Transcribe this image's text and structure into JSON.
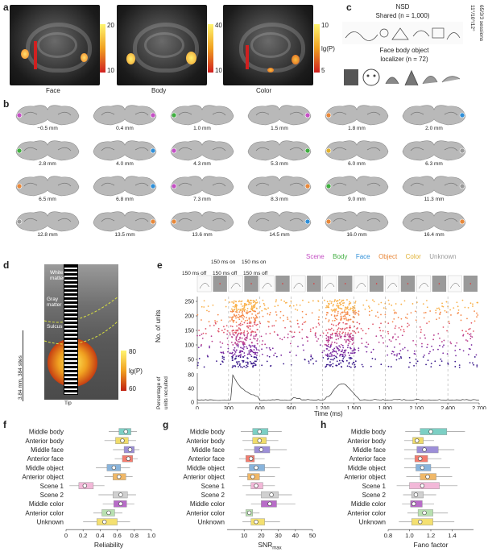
{
  "panels": {
    "a": "a",
    "b": "b",
    "c": "c",
    "d": "d",
    "e": "e",
    "f": "f",
    "g": "g",
    "h": "h"
  },
  "panel_a": {
    "maps": [
      {
        "label": "Face",
        "cmax": "20",
        "cmin": "10"
      },
      {
        "label": "Body",
        "cmax": "40",
        "cmin": "10"
      },
      {
        "label": "Color",
        "cmax": "10",
        "cmin": "5"
      }
    ],
    "unit_label": "lg(P)"
  },
  "panel_c": {
    "nsd_title": "NSD",
    "nsd_sub": "Shared (n = 1,000)",
    "loc_title": "Face body object",
    "loc_sub": "localizer (n = 72)",
    "side_text_1": "11°/10°/12°",
    "side_text_2": "65/3/3 sessions"
  },
  "panel_b": {
    "slices": [
      "−0.5 mm",
      "0.4 mm",
      "1.0 mm",
      "1.5 mm",
      "1.8 mm",
      "2.0 mm",
      "2.8 mm",
      "4.0 mm",
      "4.3 mm",
      "5.3 mm",
      "6.0 mm",
      "6.3 mm",
      "6.5 mm",
      "6.8 mm",
      "7.3 mm",
      "8.3 mm",
      "9.0 mm",
      "11.3 mm",
      "12.8 mm",
      "13.5 mm",
      "13.6 mm",
      "14.5 mm",
      "16.0 mm",
      "16.4 mm"
    ],
    "legend": [
      {
        "name": "Scene",
        "color": "#c44fc4"
      },
      {
        "name": "Body",
        "color": "#3fae3f"
      },
      {
        "name": "Face",
        "color": "#2f8fd8"
      },
      {
        "name": "Object",
        "color": "#e8883a"
      },
      {
        "name": "Color",
        "color": "#e0b030"
      },
      {
        "name": "Unknown",
        "color": "#9a9a9a"
      }
    ]
  },
  "panel_d": {
    "white_matter": "White matter",
    "gray_matter": "Gray matter",
    "sulcus": "Sulcus",
    "length_label": "3.84 mm, 384 sites",
    "tip": "Tip",
    "cmax": "80",
    "cmin": "60",
    "unit": "lg(P)"
  },
  "panel_e": {
    "on_label_1": "150 ms on",
    "on_label_2": "150 ms on",
    "off_label_1": "150 ms off",
    "off_label_2": "150 ms off",
    "off_label_3": "150 ms off",
    "ylabel_top": "No. of units",
    "ylabel_bottom_1": "Percentage of",
    "ylabel_bottom_2": "units recruited",
    "xlabel": "Time (ms)",
    "yticks_top": [
      "250",
      "200",
      "150",
      "100",
      "50"
    ],
    "yticks_bottom": [
      "80",
      "40",
      "0"
    ],
    "xticks": [
      "0",
      "300",
      "600",
      "900",
      "1,200",
      "1,500",
      "1,800",
      "2,100",
      "2,400",
      "2,700"
    ]
  },
  "chart_data": [
    {
      "type": "box",
      "panel": "f",
      "xlabel": "Reliability",
      "xlim": [
        0,
        1.0
      ],
      "xticks": [
        "0",
        "0.2",
        "0.4",
        "0.6",
        "0.8",
        "1.0"
      ],
      "categories": [
        "Middle body",
        "Anterior body",
        "Middle face",
        "Anterior face",
        "Middle object",
        "Anterior object",
        "Scene 1",
        "Scene 2",
        "Middle color",
        "Anterior color",
        "Unknown"
      ],
      "medians": [
        0.7,
        0.66,
        0.75,
        0.73,
        0.56,
        0.62,
        0.22,
        0.64,
        0.64,
        0.5,
        0.45
      ],
      "q1": [
        0.62,
        0.58,
        0.68,
        0.66,
        0.48,
        0.55,
        0.15,
        0.55,
        0.56,
        0.42,
        0.36
      ],
      "q3": [
        0.76,
        0.73,
        0.8,
        0.78,
        0.64,
        0.7,
        0.32,
        0.72,
        0.71,
        0.57,
        0.6
      ],
      "whisker_low": [
        0.5,
        0.45,
        0.55,
        0.57,
        0.35,
        0.45,
        0.04,
        0.38,
        0.43,
        0.32,
        0.2
      ],
      "whisker_high": [
        0.83,
        0.82,
        0.86,
        0.84,
        0.75,
        0.78,
        0.45,
        0.82,
        0.8,
        0.66,
        0.75
      ],
      "colors": [
        "#7ccfc4",
        "#f0dc6a",
        "#9d8fd8",
        "#f47c6e",
        "#88b4dc",
        "#f0b868",
        "#f2b8d8",
        "#d0d0d0",
        "#b86cc8",
        "#b8e0b0",
        "#f4e070"
      ]
    },
    {
      "type": "box",
      "panel": "g",
      "xlabel": "SNR",
      "xlabel_sub": "max",
      "xlim": [
        0,
        50
      ],
      "xticks": [
        "10",
        "20",
        "30",
        "40",
        "50"
      ],
      "categories": [
        "Middle body",
        "Anterior body",
        "Middle face",
        "Anterior face",
        "Middle object",
        "Anterior object",
        "Scene 1",
        "Scene 2",
        "Middle color",
        "Anterior color",
        "Unknown"
      ],
      "medians": [
        19,
        19,
        20,
        14,
        17,
        15,
        17,
        26,
        25,
        13,
        17
      ],
      "q1": [
        15,
        15,
        16,
        11,
        13,
        12,
        14,
        20,
        20,
        11,
        14
      ],
      "q3": [
        24,
        23,
        25,
        16,
        22,
        19,
        21,
        30,
        29,
        15,
        22
      ],
      "whisker_low": [
        8,
        9,
        10,
        7,
        6,
        7,
        9,
        11,
        14,
        8,
        9
      ],
      "whisker_high": [
        32,
        30,
        35,
        22,
        31,
        28,
        28,
        38,
        40,
        19,
        31
      ],
      "colors": [
        "#7ccfc4",
        "#f0dc6a",
        "#9d8fd8",
        "#f47c6e",
        "#88b4dc",
        "#f0b868",
        "#f2b8d8",
        "#d0d0d0",
        "#b86cc8",
        "#b8e0b0",
        "#f4e070"
      ]
    },
    {
      "type": "box",
      "panel": "h",
      "xlabel": "Fano factor",
      "xlim": [
        0.8,
        1.6
      ],
      "xticks": [
        "0.8",
        "1.0",
        "1.2",
        "1.4"
      ],
      "categories": [
        "Middle body",
        "Anterior body",
        "Middle face",
        "Anterior face",
        "Middle object",
        "Anterior object",
        "Scene 1",
        "Scene 2",
        "Middle color",
        "Anterior color",
        "Unknown"
      ],
      "medians": [
        1.2,
        1.07,
        1.14,
        1.1,
        1.12,
        1.17,
        1.12,
        1.06,
        1.04,
        1.14,
        1.1
      ],
      "q1": [
        1.1,
        1.03,
        1.07,
        1.05,
        1.06,
        1.1,
        1.0,
        1.02,
        1.01,
        1.08,
        1.02
      ],
      "q3": [
        1.35,
        1.13,
        1.27,
        1.17,
        1.2,
        1.25,
        1.28,
        1.13,
        1.12,
        1.22,
        1.22
      ],
      "whisker_low": [
        0.96,
        0.95,
        0.95,
        0.95,
        0.95,
        0.97,
        0.88,
        0.94,
        0.93,
        0.98,
        0.9
      ],
      "whisker_high": [
        1.52,
        1.23,
        1.42,
        1.3,
        1.38,
        1.4,
        1.45,
        1.25,
        1.23,
        1.36,
        1.42
      ],
      "colors": [
        "#7ccfc4",
        "#f0dc6a",
        "#9d8fd8",
        "#f47c6e",
        "#88b4dc",
        "#f0b868",
        "#f2b8d8",
        "#d0d0d0",
        "#b86cc8",
        "#b8e0b0",
        "#f4e070"
      ]
    }
  ]
}
